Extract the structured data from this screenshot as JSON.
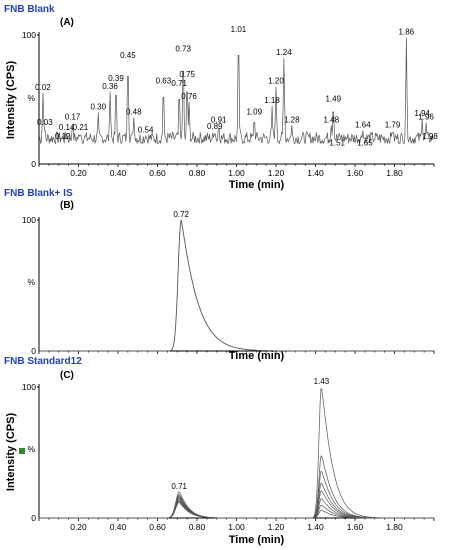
{
  "chart_data": [
    {
      "type": "line",
      "title": "FNB Blank",
      "panel": "(A)",
      "ylabel": "Intensity (CPS)",
      "xlabel": "Time (min)",
      "pct": "%",
      "y_tick_labels": [
        "100",
        "0"
      ],
      "x_tick_labels": [
        "0.20",
        "0.40",
        "0.60",
        "0.80",
        "1.00",
        "1.20",
        "1.40",
        "1.60",
        "1.80"
      ],
      "xlim": [
        0.0,
        2.0
      ],
      "ylim": [
        0,
        100
      ],
      "series": [
        {
          "peaks": [
            {
              "x": 0.02,
              "y": 55
            },
            {
              "x": 0.03,
              "y": 28
            },
            {
              "x": 0.12,
              "y": 17
            },
            {
              "x": 0.14,
              "y": 24
            },
            {
              "x": 0.17,
              "y": 32
            },
            {
              "x": 0.21,
              "y": 24
            },
            {
              "x": 0.3,
              "y": 40
            },
            {
              "x": 0.36,
              "y": 56
            },
            {
              "x": 0.39,
              "y": 62
            },
            {
              "x": 0.45,
              "y": 80
            },
            {
              "x": 0.48,
              "y": 36
            },
            {
              "x": 0.54,
              "y": 22
            },
            {
              "x": 0.63,
              "y": 60
            },
            {
              "x": 0.71,
              "y": 58
            },
            {
              "x": 0.73,
              "y": 85
            },
            {
              "x": 0.75,
              "y": 65
            },
            {
              "x": 0.76,
              "y": 48
            },
            {
              "x": 0.89,
              "y": 25
            },
            {
              "x": 0.91,
              "y": 30
            },
            {
              "x": 1.01,
              "y": 100
            },
            {
              "x": 1.09,
              "y": 36
            },
            {
              "x": 1.18,
              "y": 45
            },
            {
              "x": 1.2,
              "y": 60
            },
            {
              "x": 1.24,
              "y": 82
            },
            {
              "x": 1.28,
              "y": 30
            },
            {
              "x": 1.48,
              "y": 30
            },
            {
              "x": 1.49,
              "y": 46
            },
            {
              "x": 1.51,
              "y": 12
            },
            {
              "x": 1.64,
              "y": 26
            },
            {
              "x": 1.65,
              "y": 12
            },
            {
              "x": 1.79,
              "y": 26
            },
            {
              "x": 1.86,
              "y": 98
            },
            {
              "x": 1.94,
              "y": 35
            },
            {
              "x": 1.96,
              "y": 32
            },
            {
              "x": 1.98,
              "y": 17
            }
          ],
          "baseline": 20
        }
      ]
    },
    {
      "type": "line",
      "title": "FNB Blank+ IS",
      "panel": "(B)",
      "xlabel": "Time (min)",
      "pct": "%",
      "y_tick_labels": [
        "100",
        "0"
      ],
      "x_tick_labels": [
        "0.20",
        "0.40",
        "0.60",
        "0.80",
        "1.00",
        "1.20",
        "1.40",
        "1.60",
        "1.80"
      ],
      "xlim": [
        0.0,
        2.0
      ],
      "ylim": [
        0,
        100
      ],
      "series": [
        {
          "peaks": [
            {
              "x": 0.72,
              "y": 100
            }
          ]
        }
      ]
    },
    {
      "type": "line",
      "title": "FNB Standard12",
      "panel": "(C)",
      "ylabel": "Intensity (CPS)",
      "xlabel": "Time (min)",
      "pct": "%",
      "y_tick_labels": [
        "100",
        "0"
      ],
      "x_tick_labels": [
        "0.20",
        "0.40",
        "0.60",
        "0.80",
        "1.00",
        "1.20",
        "1.40",
        "1.60",
        "1.80"
      ],
      "xlim": [
        0.0,
        2.0
      ],
      "ylim": [
        0,
        100
      ],
      "series": [
        {
          "peaks": [
            {
              "x": 0.71,
              "y": 20
            },
            {
              "x": 1.43,
              "y": 100
            }
          ]
        },
        {
          "peaks": [
            {
              "x": 0.71,
              "y": 18
            },
            {
              "x": 1.43,
              "y": 48
            }
          ]
        },
        {
          "peaks": [
            {
              "x": 0.71,
              "y": 17
            },
            {
              "x": 1.43,
              "y": 36
            }
          ]
        },
        {
          "peaks": [
            {
              "x": 0.71,
              "y": 16
            },
            {
              "x": 1.43,
              "y": 27
            }
          ]
        },
        {
          "peaks": [
            {
              "x": 0.71,
              "y": 15
            },
            {
              "x": 1.43,
              "y": 21
            }
          ]
        },
        {
          "peaks": [
            {
              "x": 0.71,
              "y": 14
            },
            {
              "x": 1.43,
              "y": 15
            }
          ]
        },
        {
          "peaks": [
            {
              "x": 0.71,
              "y": 13
            },
            {
              "x": 1.43,
              "y": 10
            }
          ]
        },
        {
          "peaks": [
            {
              "x": 0.71,
              "y": 12
            },
            {
              "x": 1.43,
              "y": 6
            }
          ]
        }
      ],
      "peak_labels": [
        {
          "x": 0.71,
          "text": "0.71"
        },
        {
          "x": 1.43,
          "text": "1.43"
        }
      ]
    }
  ],
  "colors": {
    "title": "#1f3fbf",
    "trace": "#555555",
    "trace_dark": "#222222",
    "legend_marker": "#2e8b2e"
  }
}
